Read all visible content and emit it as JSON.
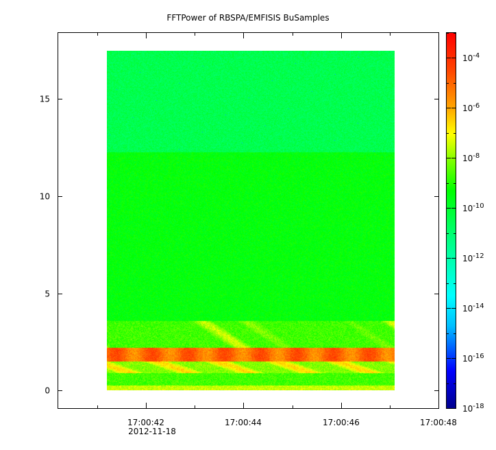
{
  "chart_data": {
    "type": "heatmap",
    "title": "FFTPower of RBSPA/EMFISIS  BuSamples",
    "xlabel": "",
    "ylabel": "",
    "x_ticks": [
      "17:00:42",
      "17:00:44",
      "17:00:46",
      "17:00:48"
    ],
    "x_date_label": "2012-11-18",
    "x_range": [
      "17:00:40.2",
      "17:00:48.0"
    ],
    "data_time_range": [
      "17:00:41.2",
      "17:00:47.1"
    ],
    "y_ticks": [
      "0",
      "5",
      "10",
      "15"
    ],
    "ylim": [
      -0.9,
      18.4
    ],
    "data_y_range": [
      0,
      17.5
    ],
    "colorbar": {
      "scale": "log",
      "range": [
        1e-18,
        0.001
      ],
      "tick_labels": [
        {
          "base": "10",
          "exp": "-4",
          "value": 0.0001
        },
        {
          "base": "10",
          "exp": "-6",
          "value": 1e-06
        },
        {
          "base": "10",
          "exp": "-8",
          "value": 1e-08
        },
        {
          "base": "10",
          "exp": "-10",
          "value": 1e-10
        },
        {
          "base": "10",
          "exp": "-12",
          "value": 1e-12
        },
        {
          "base": "10",
          "exp": "-14",
          "value": 1e-14
        },
        {
          "base": "10",
          "exp": "-16",
          "value": 1e-16
        },
        {
          "base": "10",
          "exp": "-18",
          "value": 1e-18
        }
      ],
      "colormap": [
        "#00008b",
        "#0000ff",
        "#00bfff",
        "#00ffff",
        "#00ff80",
        "#00ff00",
        "#7fff00",
        "#ffff00",
        "#ffa500",
        "#ff4500",
        "#ff0000"
      ]
    },
    "grid": false,
    "legend": "none"
  }
}
